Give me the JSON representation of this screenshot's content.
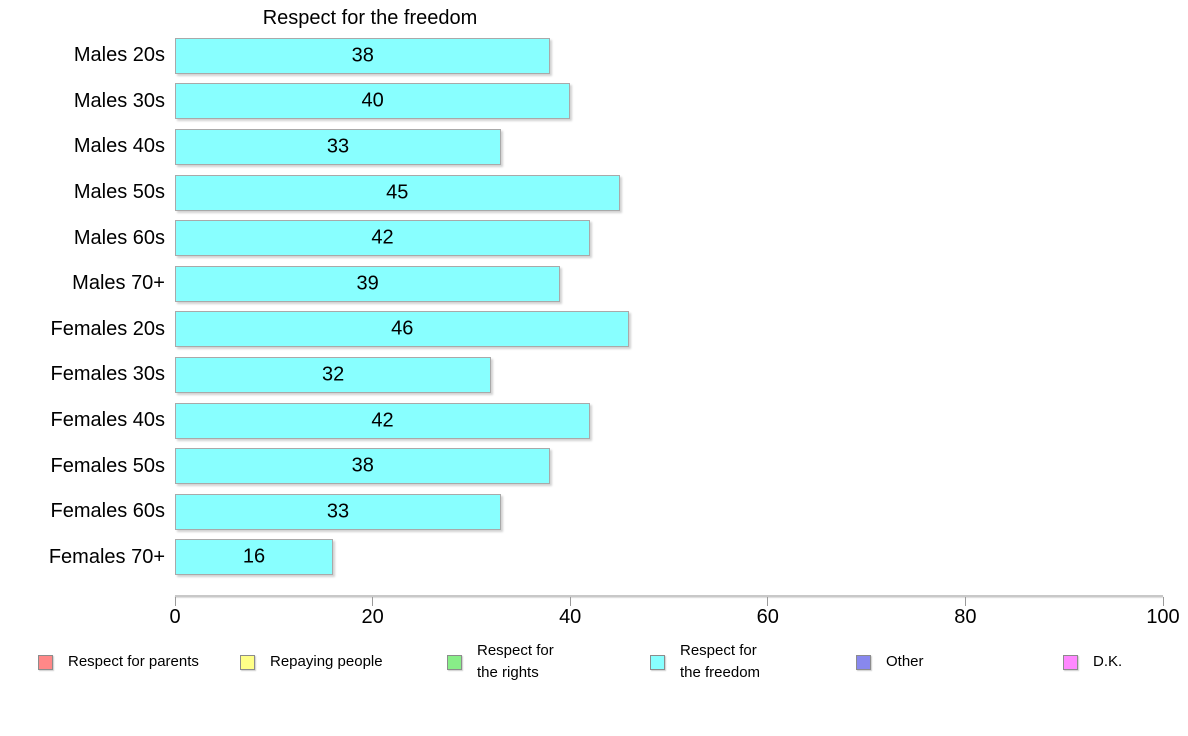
{
  "chart_data": {
    "type": "bar",
    "orientation": "horizontal",
    "title": "Respect for the freedom",
    "categories": [
      "Males 20s",
      "Males 30s",
      "Males 40s",
      "Males 50s",
      "Males 60s",
      "Males 70+",
      "Females 20s",
      "Females 30s",
      "Females 40s",
      "Females 50s",
      "Females 60s",
      "Females 70+"
    ],
    "values": [
      38,
      40,
      33,
      45,
      42,
      39,
      46,
      32,
      42,
      38,
      33,
      16
    ],
    "xlim": [
      0,
      100
    ],
    "x_ticks": [
      "0",
      "20",
      "40",
      "60",
      "80",
      "100"
    ],
    "bar_color": "#88ffff",
    "grid": "off",
    "legend_position": "bottom",
    "legend": [
      {
        "label": "Respect for parents",
        "color": "#ff8888"
      },
      {
        "label": "Repaying people",
        "color": "#ffff88"
      },
      {
        "label": "Respect for the rights",
        "color": "#88ee88"
      },
      {
        "label": "Respect for the freedom",
        "color": "#88ffff"
      },
      {
        "label": "Other",
        "color": "#8888ee"
      },
      {
        "label": "D.K.",
        "color": "#ff88ff"
      }
    ]
  }
}
